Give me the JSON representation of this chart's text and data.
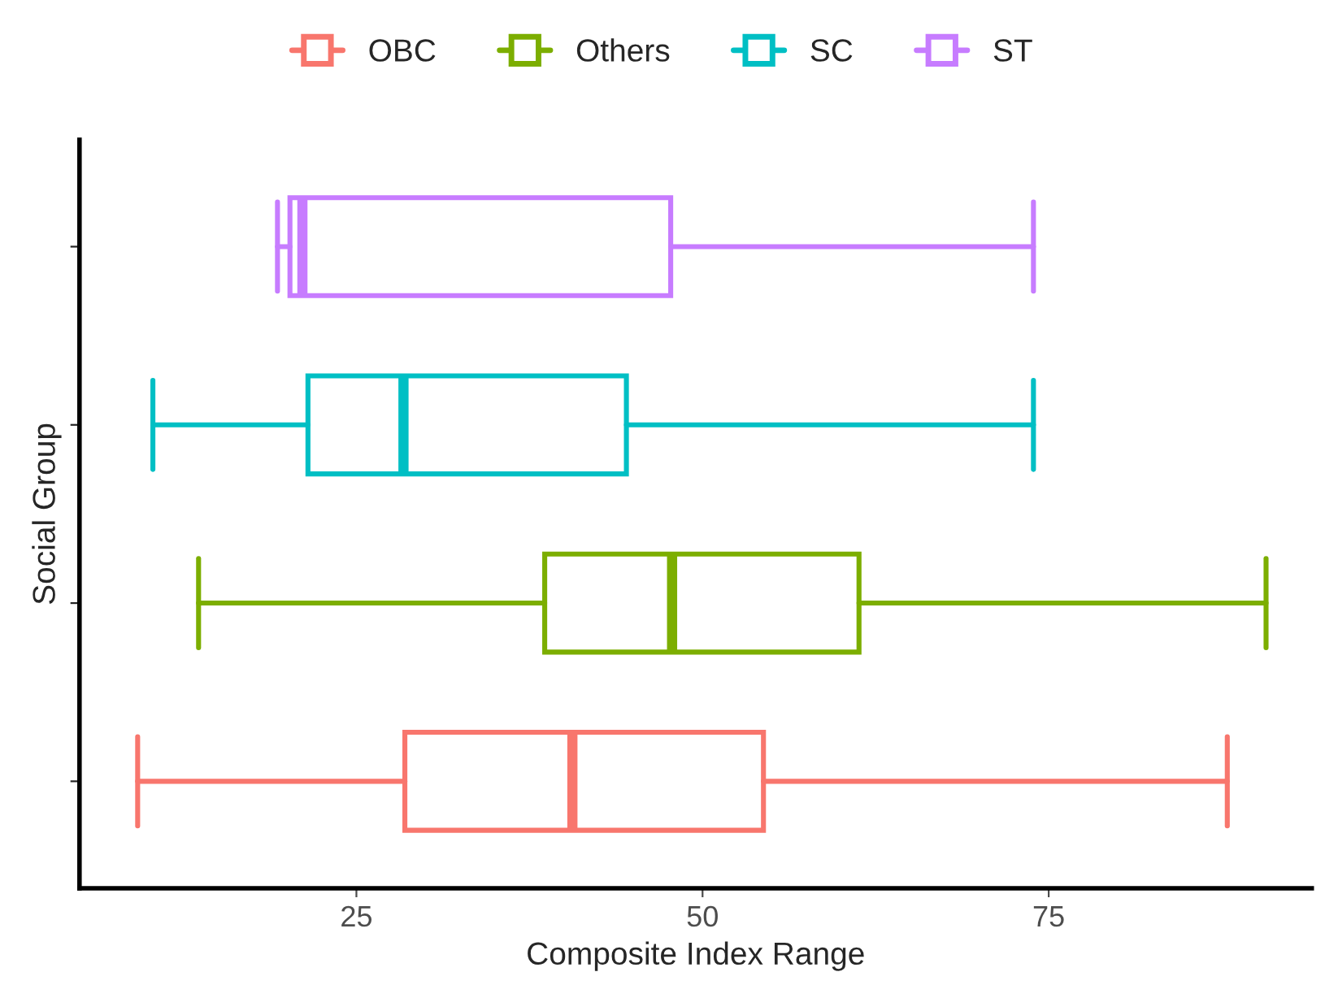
{
  "chart_data": {
    "type": "box",
    "orientation": "horizontal",
    "xlabel": "Composite Index Range",
    "ylabel": "Social Group",
    "categories": [
      null,
      null,
      null,
      null
    ],
    "series": [
      {
        "name": "OBC",
        "color": "#f8766d",
        "boxes": [
          null,
          null,
          null,
          {
            "low": 9.2,
            "q1": 28.5,
            "median": 40.6,
            "q3": 54.4,
            "high": 87.9
          }
        ]
      },
      {
        "name": "Others",
        "color": "#7cae00",
        "boxes": [
          null,
          null,
          {
            "low": 13.6,
            "q1": 38.6,
            "median": 47.8,
            "q3": 61.3,
            "high": 90.7
          },
          null
        ]
      },
      {
        "name": "SC",
        "color": "#00bfc4",
        "boxes": [
          null,
          {
            "low": 10.3,
            "q1": 21.5,
            "median": 28.4,
            "q3": 44.5,
            "high": 73.9
          },
          null,
          null
        ]
      },
      {
        "name": "ST",
        "color": "#c77cff",
        "boxes": [
          {
            "low": 19.3,
            "q1": 20.2,
            "median": 21.1,
            "q3": 47.7,
            "high": 73.9
          },
          null,
          null,
          null
        ]
      }
    ],
    "xlim": [
      5,
      94
    ],
    "xticks": [
      25,
      50,
      75
    ],
    "grid": false,
    "legend": "top",
    "tick_labels": "x"
  }
}
